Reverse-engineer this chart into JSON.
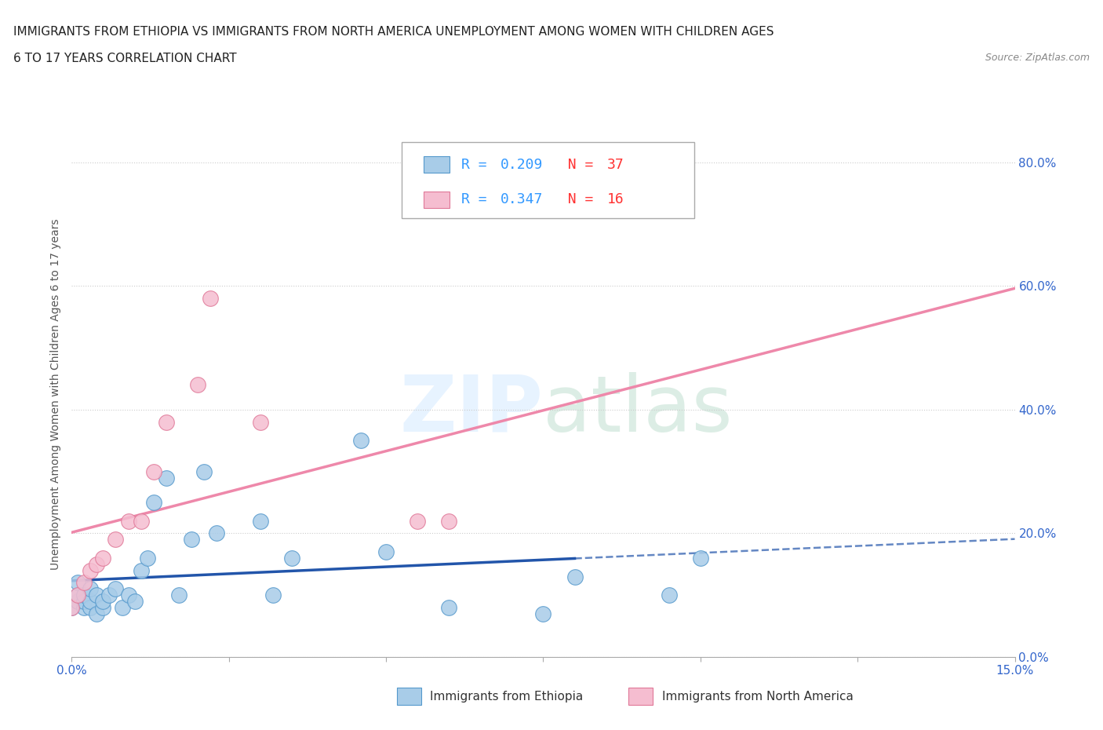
{
  "title_line1": "IMMIGRANTS FROM ETHIOPIA VS IMMIGRANTS FROM NORTH AMERICA UNEMPLOYMENT AMONG WOMEN WITH CHILDREN AGES",
  "title_line2": "6 TO 17 YEARS CORRELATION CHART",
  "source": "Source: ZipAtlas.com",
  "ylabel": "Unemployment Among Women with Children Ages 6 to 17 years",
  "xlim": [
    0.0,
    0.15
  ],
  "ylim": [
    0.0,
    0.85
  ],
  "background_color": "#ffffff",
  "ethiopia_color": "#a8cce8",
  "ethiopia_edge": "#5599cc",
  "north_america_color": "#f5bdd0",
  "north_america_edge": "#e07898",
  "ethiopia_R": 0.209,
  "ethiopia_N": 37,
  "north_america_R": 0.347,
  "north_america_N": 16,
  "ethiopia_line_color": "#2255aa",
  "north_america_line_color": "#ee88aa",
  "legend_R_color": "#3399ff",
  "legend_N_color": "#ff3333",
  "ethiopia_x": [
    0.0,
    0.001,
    0.001,
    0.001,
    0.002,
    0.002,
    0.002,
    0.003,
    0.003,
    0.003,
    0.004,
    0.004,
    0.005,
    0.005,
    0.006,
    0.007,
    0.008,
    0.009,
    0.01,
    0.011,
    0.012,
    0.013,
    0.015,
    0.017,
    0.019,
    0.021,
    0.023,
    0.03,
    0.032,
    0.035,
    0.046,
    0.05,
    0.06,
    0.075,
    0.08,
    0.095,
    0.1
  ],
  "ethiopia_y": [
    0.08,
    0.09,
    0.1,
    0.12,
    0.08,
    0.09,
    0.1,
    0.08,
    0.09,
    0.11,
    0.07,
    0.1,
    0.08,
    0.09,
    0.1,
    0.11,
    0.08,
    0.1,
    0.09,
    0.14,
    0.16,
    0.25,
    0.29,
    0.1,
    0.19,
    0.3,
    0.2,
    0.22,
    0.1,
    0.16,
    0.35,
    0.17,
    0.08,
    0.07,
    0.13,
    0.1,
    0.16
  ],
  "north_america_x": [
    0.0,
    0.001,
    0.002,
    0.003,
    0.004,
    0.005,
    0.007,
    0.009,
    0.011,
    0.013,
    0.015,
    0.02,
    0.022,
    0.03,
    0.055,
    0.06
  ],
  "north_america_y": [
    0.08,
    0.1,
    0.12,
    0.14,
    0.15,
    0.16,
    0.19,
    0.22,
    0.22,
    0.3,
    0.38,
    0.44,
    0.58,
    0.38,
    0.22,
    0.22
  ],
  "eth_line_solid_end": 0.08,
  "eth_line_dash_start": 0.08
}
